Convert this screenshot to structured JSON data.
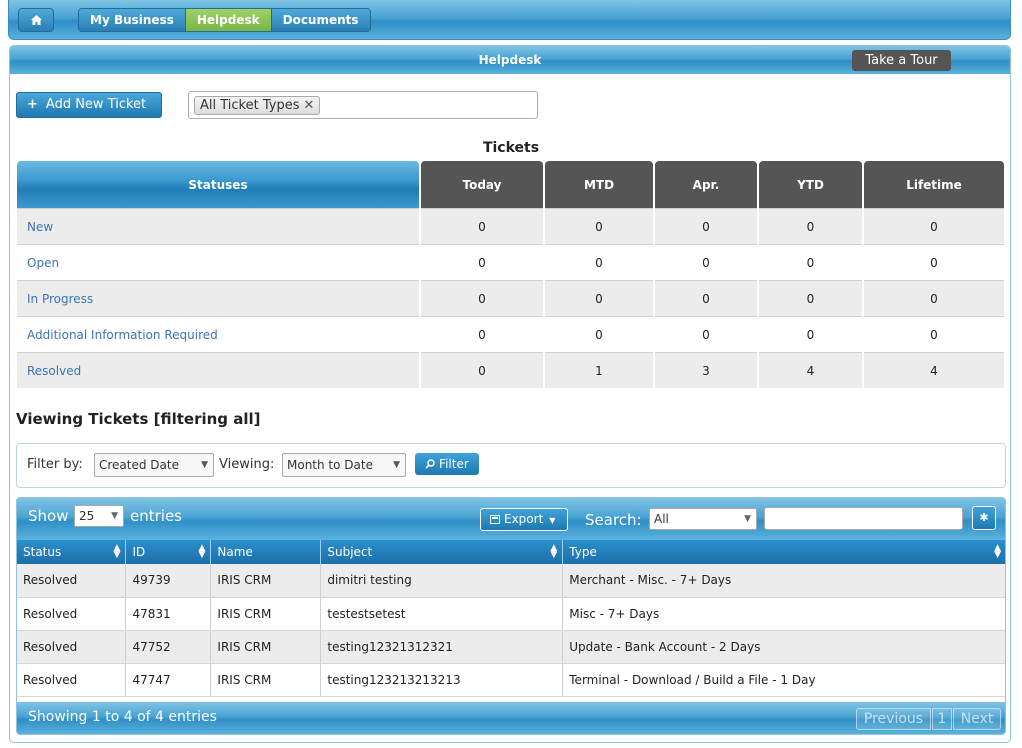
{
  "nav": {
    "home_icon": "home-icon",
    "items": [
      {
        "label": "My Business",
        "active": false
      },
      {
        "label": "Helpdesk",
        "active": true
      },
      {
        "label": "Documents",
        "active": false
      }
    ]
  },
  "panel": {
    "title": "Helpdesk",
    "tour_label": "Take a Tour",
    "add_ticket_label": "Add New Ticket",
    "ticket_type_tag": "All Ticket Types"
  },
  "tickets": {
    "title": "Tickets",
    "headers": [
      "Statuses",
      "Today",
      "MTD",
      "Apr.",
      "YTD",
      "Lifetime"
    ],
    "rows": [
      {
        "status": "New",
        "values": [
          "0",
          "0",
          "0",
          "0",
          "0"
        ]
      },
      {
        "status": "Open",
        "values": [
          "0",
          "0",
          "0",
          "0",
          "0"
        ]
      },
      {
        "status": "In Progress",
        "values": [
          "0",
          "0",
          "0",
          "0",
          "0"
        ]
      },
      {
        "status": "Additional Information Required",
        "values": [
          "0",
          "0",
          "0",
          "0",
          "0"
        ]
      },
      {
        "status": "Resolved",
        "values": [
          "0",
          "1",
          "3",
          "4",
          "4"
        ]
      }
    ]
  },
  "viewing": {
    "title": "Viewing Tickets [filtering all]",
    "filter_by_label": "Filter by:",
    "filter_by_value": "Created Date",
    "viewing_label": "Viewing:",
    "viewing_value": "Month to Date",
    "filter_button": "Filter"
  },
  "datatable": {
    "show_label": "Show",
    "entries_value": "25",
    "entries_label": "entries",
    "export_label": "Export",
    "search_label": "Search:",
    "search_scope": "All",
    "search_value": "",
    "columns": [
      "Status",
      "ID",
      "Name",
      "Subject",
      "Type"
    ],
    "rows": [
      {
        "status": "Resolved",
        "id": "49739",
        "name": "IRIS CRM",
        "subject": "dimitri testing",
        "type": "Merchant - Misc. - 7+ Days"
      },
      {
        "status": "Resolved",
        "id": "47831",
        "name": "IRIS CRM",
        "subject": "testestsetest",
        "type": "Misc - 7+ Days"
      },
      {
        "status": "Resolved",
        "id": "47752",
        "name": "IRIS CRM",
        "subject": "testing12321312321",
        "type": "Update - Bank Account - 2 Days"
      },
      {
        "status": "Resolved",
        "id": "47747",
        "name": "IRIS CRM",
        "subject": "testing123213213213",
        "type": "Terminal - Download / Build a File - 1 Day"
      }
    ],
    "info": "Showing 1 to 4 of 4 entries",
    "prev_label": "Previous",
    "page_label": "1",
    "next_label": "Next"
  },
  "colors": {
    "brand_blue": "#2f8fc6",
    "active_nav": "#8cc455",
    "link": "#3a74b5",
    "header_dark": "#555555"
  }
}
